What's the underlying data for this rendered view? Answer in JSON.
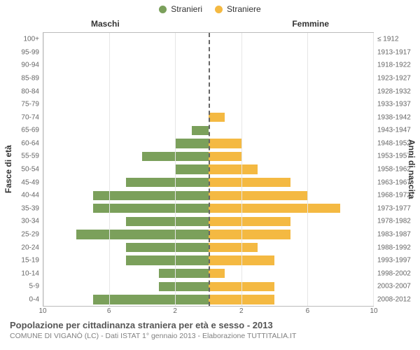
{
  "legend": {
    "male": {
      "label": "Stranieri",
      "color": "#7ba05b"
    },
    "female": {
      "label": "Straniere",
      "color": "#f4b942"
    }
  },
  "headings": {
    "male": "Maschi",
    "female": "Femmine"
  },
  "axes": {
    "y_left_title": "Fasce di età",
    "y_right_title": "Anni di nascita",
    "x_max": 10,
    "x_ticks_left": [
      10,
      6,
      2
    ],
    "x_ticks_right": [
      2,
      6,
      10
    ]
  },
  "colors": {
    "male_bar": "#7ba05b",
    "female_bar": "#f4b942",
    "grid": "#e6e6e6",
    "center_line": "#666666",
    "plot_border": "#bbbbbb",
    "background": "#ffffff"
  },
  "rows": [
    {
      "age": "100+",
      "birth": "≤ 1912",
      "m": 0,
      "f": 0
    },
    {
      "age": "95-99",
      "birth": "1913-1917",
      "m": 0,
      "f": 0
    },
    {
      "age": "90-94",
      "birth": "1918-1922",
      "m": 0,
      "f": 0
    },
    {
      "age": "85-89",
      "birth": "1923-1927",
      "m": 0,
      "f": 0
    },
    {
      "age": "80-84",
      "birth": "1928-1932",
      "m": 0,
      "f": 0
    },
    {
      "age": "75-79",
      "birth": "1933-1937",
      "m": 0,
      "f": 0
    },
    {
      "age": "70-74",
      "birth": "1938-1942",
      "m": 0,
      "f": 1
    },
    {
      "age": "65-69",
      "birth": "1943-1947",
      "m": 1,
      "f": 0
    },
    {
      "age": "60-64",
      "birth": "1948-1952",
      "m": 2,
      "f": 2
    },
    {
      "age": "55-59",
      "birth": "1953-1957",
      "m": 4,
      "f": 2
    },
    {
      "age": "50-54",
      "birth": "1958-1962",
      "m": 2,
      "f": 3
    },
    {
      "age": "45-49",
      "birth": "1963-1967",
      "m": 5,
      "f": 5
    },
    {
      "age": "40-44",
      "birth": "1968-1972",
      "m": 7,
      "f": 6
    },
    {
      "age": "35-39",
      "birth": "1973-1977",
      "m": 7,
      "f": 8
    },
    {
      "age": "30-34",
      "birth": "1978-1982",
      "m": 5,
      "f": 5
    },
    {
      "age": "25-29",
      "birth": "1983-1987",
      "m": 8,
      "f": 5
    },
    {
      "age": "20-24",
      "birth": "1988-1992",
      "m": 5,
      "f": 3
    },
    {
      "age": "15-19",
      "birth": "1993-1997",
      "m": 5,
      "f": 4
    },
    {
      "age": "10-14",
      "birth": "1998-2002",
      "m": 3,
      "f": 1
    },
    {
      "age": "5-9",
      "birth": "2003-2007",
      "m": 3,
      "f": 4
    },
    {
      "age": "0-4",
      "birth": "2008-2012",
      "m": 7,
      "f": 4
    }
  ],
  "footer": {
    "title": "Popolazione per cittadinanza straniera per età e sesso - 2013",
    "sub": "COMUNE DI VIGANÒ (LC) - Dati ISTAT 1° gennaio 2013 - Elaborazione TUTTITALIA.IT"
  }
}
